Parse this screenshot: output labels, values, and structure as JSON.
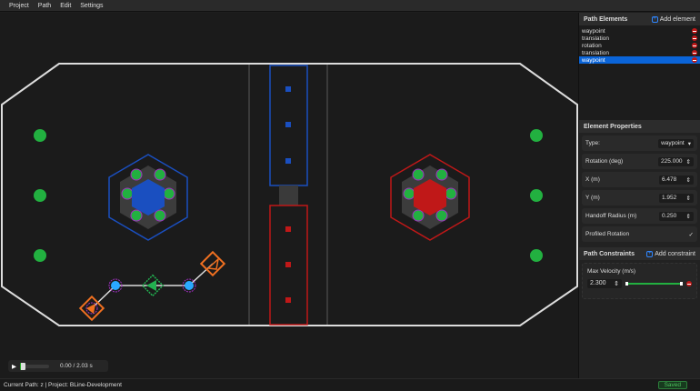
{
  "menu": [
    "Project",
    "Path",
    "Edit",
    "Settings"
  ],
  "path_elements": {
    "title": "Path Elements",
    "add_label": "Add element",
    "items": [
      {
        "label": "waypoint",
        "selected": false
      },
      {
        "label": "translation",
        "selected": false
      },
      {
        "label": "rotation",
        "selected": false
      },
      {
        "label": "translation",
        "selected": false
      },
      {
        "label": "waypoint",
        "selected": true
      }
    ]
  },
  "element_properties": {
    "title": "Element Properties",
    "type_label": "Type:",
    "type_value": "waypoint",
    "rotation_label": "Rotation (deg)",
    "rotation_value": "225.000",
    "x_label": "X (m)",
    "x_value": "6.478",
    "y_label": "Y (m)",
    "y_value": "1.952",
    "handoff_label": "Handoff Radius (m)",
    "handoff_value": "0.250",
    "profiled_label": "Profiled Rotation",
    "profiled_checked": true
  },
  "path_constraints": {
    "title": "Path Constraints",
    "add_label": "Add constraint",
    "max_velocity_label": "Max Velocity (m/s)",
    "max_velocity_value": "2.300"
  },
  "player": {
    "time": "0.00 / 2.03 s",
    "progress": 0
  },
  "status": {
    "text": "Current Path: z | Project: BLine-Development",
    "saved": "Saved"
  },
  "colors": {
    "accent": "#0a64d8",
    "blue_alliance": "#1a4fc0",
    "red_alliance": "#c01818",
    "waypoint": "#f07020",
    "translation": "#2aa8ff",
    "rotation": "#22b050"
  }
}
